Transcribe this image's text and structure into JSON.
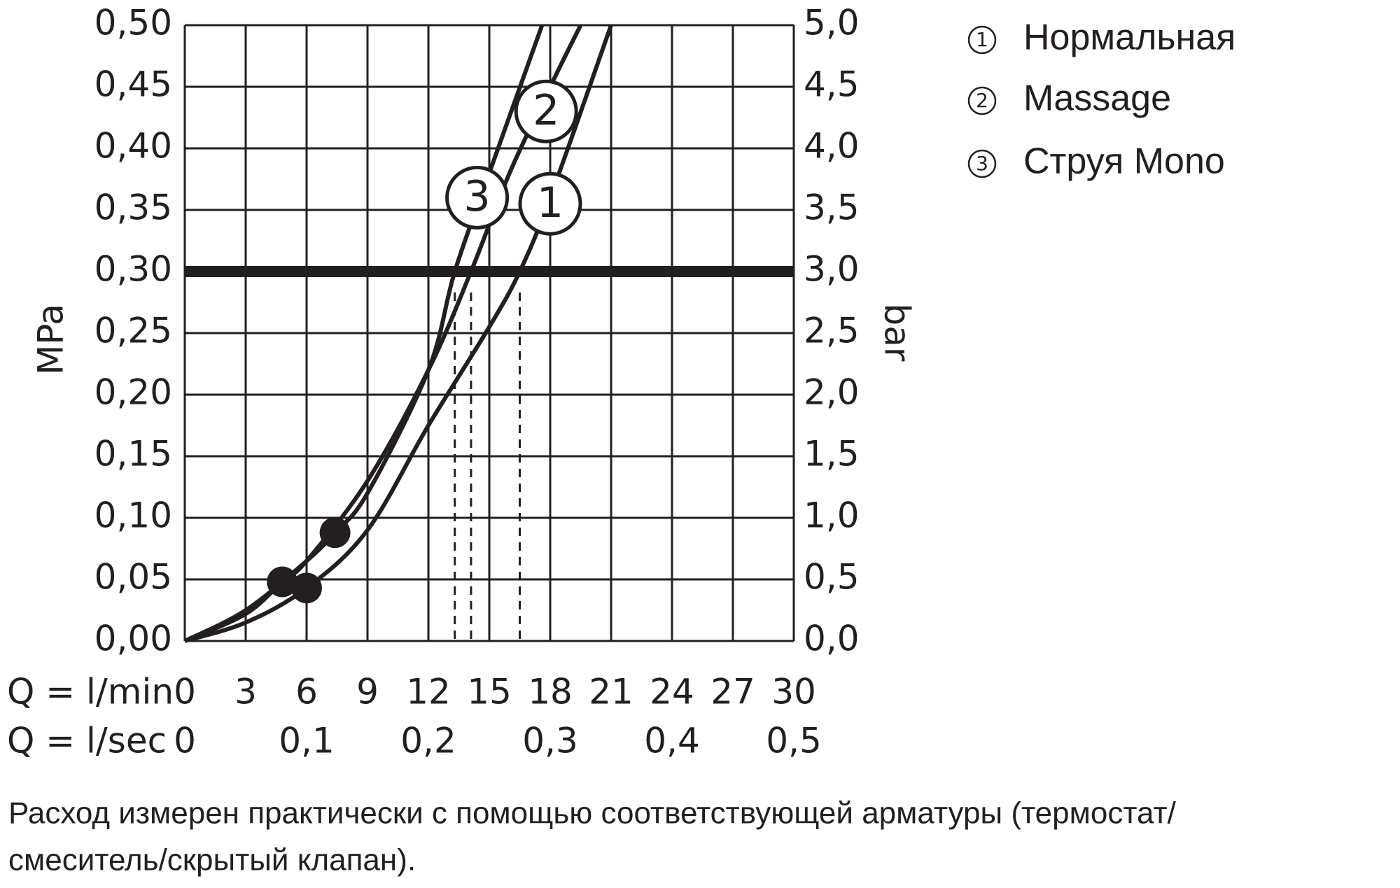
{
  "chart_data": {
    "type": "line",
    "xlabel": "Q = l/min",
    "x2label": "Q = l/sec",
    "ylabel": "MPa",
    "y2label": "bar",
    "xlim": [
      0,
      30
    ],
    "xticks": [
      0,
      3,
      6,
      9,
      12,
      15,
      18,
      21,
      24,
      27,
      30
    ],
    "x2lim": [
      0,
      0.5
    ],
    "x2ticks": [
      {
        "value": 0,
        "label": "0"
      },
      {
        "value": 0.1,
        "label": "0,1"
      },
      {
        "value": 0.2,
        "label": "0,2"
      },
      {
        "value": 0.3,
        "label": "0,3"
      },
      {
        "value": 0.4,
        "label": "0,4"
      },
      {
        "value": 0.5,
        "label": "0,5"
      }
    ],
    "ylim": [
      0,
      0.5
    ],
    "yticks": [
      {
        "value": 0,
        "label": "0,00"
      },
      {
        "value": 0.05,
        "label": "0,05"
      },
      {
        "value": 0.1,
        "label": "0,10"
      },
      {
        "value": 0.15,
        "label": "0,15"
      },
      {
        "value": 0.2,
        "label": "0,20"
      },
      {
        "value": 0.25,
        "label": "0,25"
      },
      {
        "value": 0.3,
        "label": "0,30"
      },
      {
        "value": 0.35,
        "label": "0,35"
      },
      {
        "value": 0.4,
        "label": "0,40"
      },
      {
        "value": 0.45,
        "label": "0,45"
      },
      {
        "value": 0.5,
        "label": "0,50"
      }
    ],
    "y2lim": [
      0,
      5
    ],
    "y2ticks": [
      {
        "value": 0,
        "label": "0,0"
      },
      {
        "value": 0.5,
        "label": "0,5"
      },
      {
        "value": 1,
        "label": "1,0"
      },
      {
        "value": 1.5,
        "label": "1,5"
      },
      {
        "value": 2,
        "label": "2,0"
      },
      {
        "value": 2.5,
        "label": "2,5"
      },
      {
        "value": 3,
        "label": "3,0"
      },
      {
        "value": 3.5,
        "label": "3,5"
      },
      {
        "value": 4,
        "label": "4,0"
      },
      {
        "value": 4.5,
        "label": "4,5"
      },
      {
        "value": 5,
        "label": "5,0"
      }
    ],
    "grid": true,
    "reference_y": 0.3,
    "color": "#231f20",
    "series": [
      {
        "number": "1",
        "name": "Нормальная",
        "x": [
          0,
          3,
          6,
          9,
          12,
          15,
          16.5,
          18,
          21
        ],
        "values": [
          0,
          0.015,
          0.043,
          0.09,
          0.175,
          0.255,
          0.3,
          0.36,
          0.5
        ],
        "marker": 2,
        "crossing": 6
      },
      {
        "number": "2",
        "name": "Massage",
        "x": [
          0,
          3,
          4.8,
          6,
          9,
          12,
          14.1,
          16,
          18,
          19.5
        ],
        "values": [
          0,
          0.022,
          0.048,
          0.065,
          0.13,
          0.22,
          0.3,
          0.38,
          0.45,
          0.5
        ],
        "marker": 2,
        "crossing": 6
      },
      {
        "number": "3",
        "name": "Струя Mono",
        "x": [
          0,
          3,
          6,
          7.4,
          9,
          12,
          13.3,
          15,
          17.6
        ],
        "values": [
          0,
          0.025,
          0.065,
          0.088,
          0.12,
          0.22,
          0.3,
          0.38,
          0.5
        ],
        "marker": 3,
        "crossing": 6
      }
    ],
    "footnote": [
      "Расход измерен практически с помощью соответствующей арматуры (термостат/",
      "смеситель/скрытый клапан)."
    ]
  }
}
